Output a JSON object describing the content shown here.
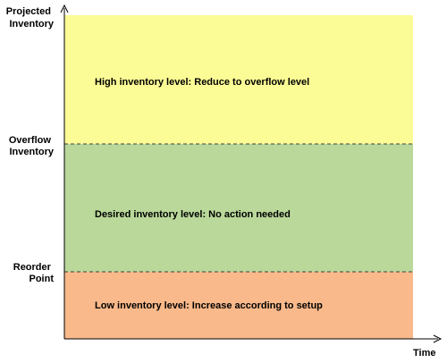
{
  "y_axis": {
    "title_lines": [
      "Projected",
      "Inventory"
    ]
  },
  "x_axis": {
    "title": "Time"
  },
  "thresholds": [
    {
      "lines": [
        "Overflow",
        "Inventory"
      ]
    },
    {
      "lines": [
        "Reorder",
        "Point"
      ]
    }
  ],
  "zones": [
    {
      "label": "High inventory level: Reduce to overflow level",
      "color": "#fcfc96"
    },
    {
      "label": "Desired inventory level: No action needed",
      "color": "#b9d89a"
    },
    {
      "label": "Low inventory level: Increase according to setup",
      "color": "#f9b98a"
    }
  ],
  "colors": {
    "axis": "#000000",
    "threshold_line": "#404040"
  }
}
